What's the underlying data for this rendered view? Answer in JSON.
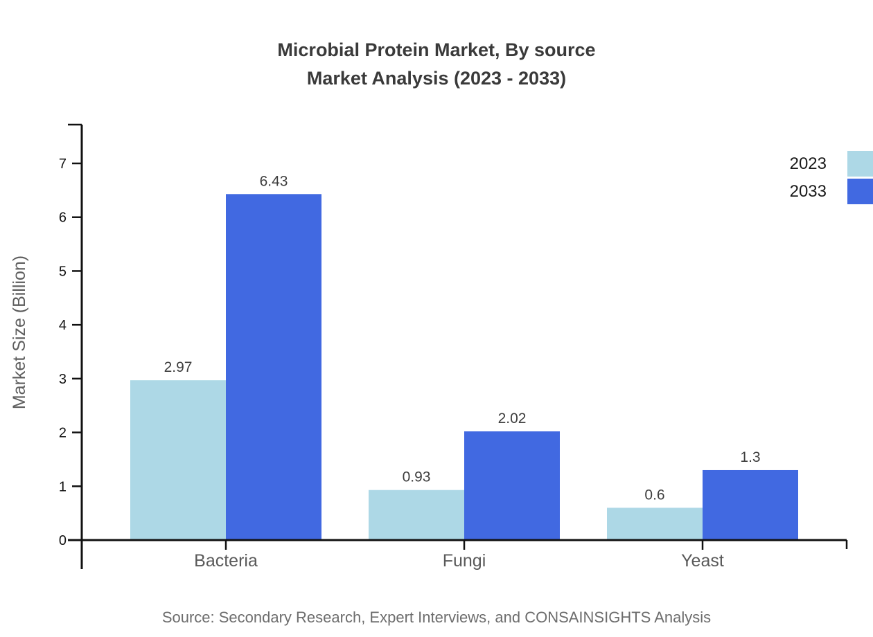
{
  "title": {
    "line1": "Microbial Protein Market, By source",
    "line2": "Market Analysis (2023 - 2033)"
  },
  "source_note": "Source: Secondary Research, Expert Interviews, and CONSAINSIGHTS Analysis",
  "chart_data": {
    "type": "bar",
    "title": "Microbial Protein Market, By source Market Analysis (2023 - 2033)",
    "categories": [
      "Bacteria",
      "Fungi",
      "Yeast"
    ],
    "series": [
      {
        "name": "2023",
        "color": "#ADD8E6",
        "values": [
          2.97,
          0.93,
          0.6
        ]
      },
      {
        "name": "2033",
        "color": "#4169E1",
        "values": [
          6.43,
          2.02,
          1.3
        ]
      }
    ],
    "xlabel": "",
    "ylabel": "Market Size (Billion)",
    "ylim": [
      0,
      7.72
    ],
    "yticks": [
      0,
      1,
      2,
      3,
      4,
      5,
      6,
      7
    ],
    "grid": false,
    "legend_position": "top-right",
    "value_labels": true,
    "axis_color": "#111111"
  }
}
